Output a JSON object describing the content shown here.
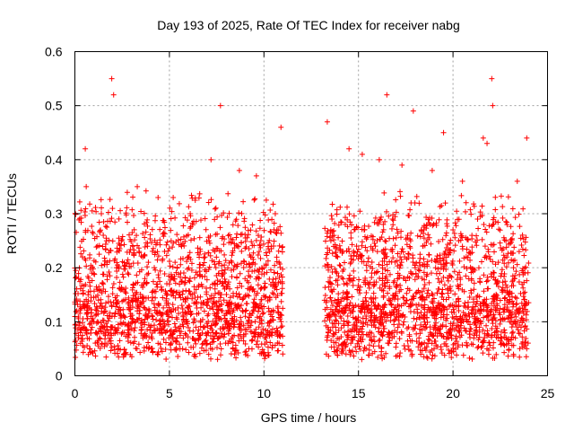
{
  "chart_data": {
    "type": "scatter",
    "title": "Day 193 of 2025, Rate Of TEC Index for receiver nabg",
    "xlabel": "GPS time / hours",
    "ylabel": "ROTI / TECUs",
    "xlim": [
      0,
      25
    ],
    "ylim": [
      0,
      0.6
    ],
    "xticks": [
      0,
      5,
      10,
      15,
      20,
      25
    ],
    "yticks": [
      0,
      0.1,
      0.2,
      0.3,
      0.4,
      0.5,
      0.6
    ],
    "xtick_labels": [
      "0",
      "5",
      "10",
      "15",
      "20",
      "25"
    ],
    "ytick_labels": [
      "0",
      "0.1",
      "0.2",
      "0.3",
      "0.4",
      "0.5",
      "0.6"
    ],
    "grid": true,
    "marker": "+",
    "marker_color": "#ff0000",
    "data_gap_hours": [
      11.0,
      13.2
    ],
    "series": [
      {
        "x": [
          0.1,
          0.3,
          0.5,
          0.6,
          0.8,
          1.0,
          1.3,
          1.9,
          2.0,
          2.1,
          2.3,
          2.6,
          3.1,
          3.2,
          3.3,
          3.6,
          3.9,
          4.0,
          4.1,
          4.4,
          4.8,
          5.1,
          5.4,
          5.7,
          5.9,
          6.4,
          6.8,
          7.0,
          7.3,
          7.5,
          7.6,
          7.8,
          8.1,
          8.4,
          8.8,
          9.2,
          9.5,
          9.8,
          10.1,
          10.4,
          10.8,
          10.9,
          13.3,
          13.5,
          13.8,
          14.0,
          14.2,
          14.4,
          14.7,
          15.1,
          15.4,
          15.9,
          16.2,
          16.6,
          17.0,
          17.4,
          17.8,
          18.2,
          18.6,
          19.0,
          19.4,
          19.8,
          20.1,
          20.4,
          20.8,
          21.1,
          21.4,
          21.8,
          22.0,
          22.2,
          22.6,
          23.0,
          23.3,
          23.6,
          23.9,
          0.2,
          0.4,
          0.7,
          0.9,
          1.2,
          1.5,
          1.7,
          2.2,
          2.5,
          2.8,
          3.0,
          3.4,
          3.7,
          4.2,
          4.6,
          5.0,
          5.3,
          5.6,
          6.0,
          6.2,
          6.6,
          7.1,
          7.4,
          7.9,
          8.3,
          8.6,
          9.0,
          9.3,
          9.7,
          10.0,
          10.3,
          10.6,
          10.8,
          13.4,
          13.7,
          13.9,
          14.3,
          14.6,
          14.9,
          15.3,
          15.7,
          16.0,
          16.4,
          16.8,
          17.2,
          17.6,
          18.0,
          18.4,
          18.8,
          19.2,
          19.6,
          20.0,
          20.3,
          20.7,
          21.0,
          21.3,
          21.7,
          22.1,
          22.4,
          22.8,
          23.2,
          23.5,
          23.8,
          0.55,
          1.95,
          2.05,
          7.7,
          10.9,
          16.5,
          17.3,
          17.9,
          19.5,
          21.8,
          22.05,
          22.1,
          23.9,
          0.6,
          1.4,
          3.3,
          4.4,
          5.2,
          6.1,
          7.2,
          8.7,
          9.6,
          10.6,
          13.35,
          14.5,
          15.2,
          16.1,
          18.9,
          20.5,
          21.6,
          23.4
        ],
        "y": [
          0.12,
          0.06,
          0.09,
          0.08,
          0.05,
          0.1,
          0.07,
          0.06,
          0.09,
          0.11,
          0.05,
          0.08,
          0.06,
          0.1,
          0.12,
          0.07,
          0.05,
          0.09,
          0.11,
          0.06,
          0.08,
          0.12,
          0.07,
          0.05,
          0.1,
          0.09,
          0.06,
          0.13,
          0.08,
          0.11,
          0.07,
          0.12,
          0.06,
          0.09,
          0.1,
          0.05,
          0.08,
          0.11,
          0.07,
          0.12,
          0.06,
          0.09,
          0.04,
          0.11,
          0.08,
          0.13,
          0.06,
          0.1,
          0.07,
          0.12,
          0.05,
          0.09,
          0.11,
          0.08,
          0.06,
          0.1,
          0.13,
          0.07,
          0.09,
          0.05,
          0.12,
          0.08,
          0.06,
          0.11,
          0.1,
          0.07,
          0.09,
          0.05,
          0.12,
          0.08,
          0.06,
          0.1,
          0.07,
          0.09,
          0.05,
          0.18,
          0.22,
          0.15,
          0.19,
          0.24,
          0.17,
          0.21,
          0.2,
          0.16,
          0.19,
          0.14,
          0.23,
          0.18,
          0.2,
          0.16,
          0.17,
          0.21,
          0.19,
          0.22,
          0.15,
          0.2,
          0.25,
          0.23,
          0.19,
          0.21,
          0.24,
          0.18,
          0.22,
          0.26,
          0.2,
          0.23,
          0.17,
          0.21,
          0.2,
          0.26,
          0.22,
          0.28,
          0.21,
          0.24,
          0.27,
          0.19,
          0.23,
          0.25,
          0.29,
          0.22,
          0.26,
          0.2,
          0.24,
          0.28,
          0.21,
          0.23,
          0.27,
          0.25,
          0.22,
          0.26,
          0.29,
          0.24,
          0.28,
          0.21,
          0.25,
          0.2,
          0.23,
          0.19,
          0.42,
          0.55,
          0.52,
          0.5,
          0.46,
          0.52,
          0.39,
          0.49,
          0.45,
          0.43,
          0.55,
          0.5,
          0.44,
          0.35,
          0.3,
          0.35,
          0.33,
          0.33,
          0.3,
          0.4,
          0.38,
          0.37,
          0.3,
          0.47,
          0.42,
          0.41,
          0.4,
          0.38,
          0.36,
          0.44,
          0.36
        ]
      }
    ]
  }
}
